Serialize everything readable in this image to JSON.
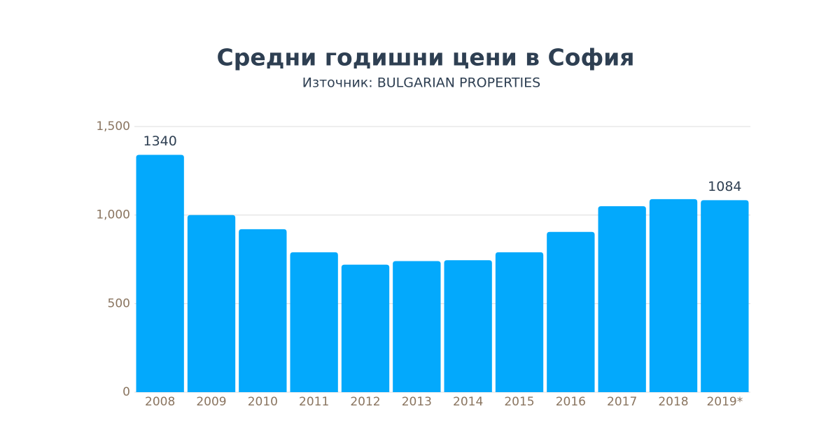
{
  "chart_data": {
    "type": "bar",
    "title": "Средни годишни цени в София",
    "subtitle": "Източник: BULGARIAN PROPERTIES",
    "categories": [
      "2008",
      "2009",
      "2010",
      "2011",
      "2012",
      "2013",
      "2014",
      "2015",
      "2016",
      "2017",
      "2018",
      "2019*"
    ],
    "values": [
      1340,
      1000,
      920,
      790,
      720,
      740,
      745,
      790,
      905,
      1050,
      1090,
      1084
    ],
    "value_labels": [
      "1340",
      null,
      null,
      null,
      null,
      null,
      null,
      null,
      null,
      null,
      null,
      "1084"
    ],
    "color": "#03a9fc",
    "ylim": [
      0,
      1500
    ],
    "yticks": [
      0,
      500,
      {
        "value": 1000,
        "label": "1,000"
      },
      {
        "value": 1500,
        "label": "1,500"
      }
    ],
    "grid": true
  }
}
